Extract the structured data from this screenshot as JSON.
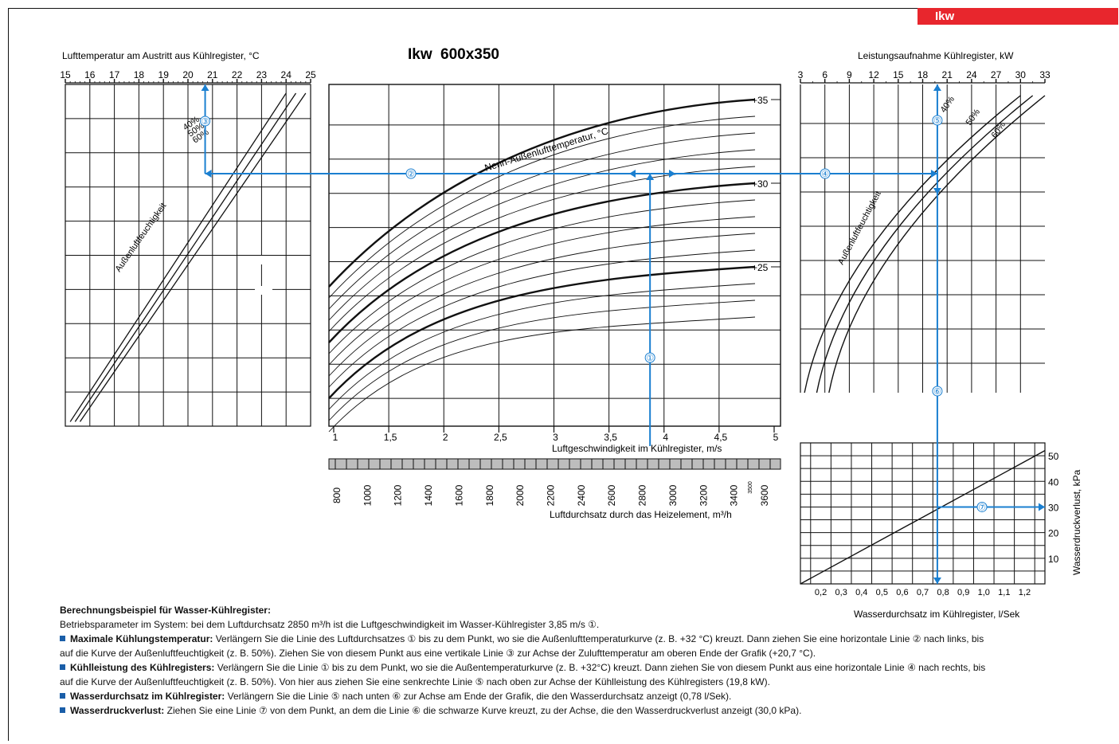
{
  "header": {
    "badge": "Ikw",
    "title_prefix": "Ikw",
    "title_model": "600x350"
  },
  "chart_data": [
    {
      "type": "line",
      "name": "left",
      "title": "Lufttemperatur am Austritt aus Kühlregister, °C",
      "x_ticks": [
        "15",
        "16",
        "17",
        "18",
        "19",
        "20",
        "21",
        "22",
        "23",
        "24",
        "25"
      ],
      "xlim": [
        15,
        25
      ],
      "curve_label": "Außenluftfeuchtigkeit",
      "series": [
        {
          "name": "40%",
          "points": [
            [
              15.2,
              0.02
            ],
            [
              24.0,
              1.0
            ]
          ]
        },
        {
          "name": "50%",
          "points": [
            [
              15.4,
              0.02
            ],
            [
              24.4,
              1.0
            ]
          ]
        },
        {
          "name": "60%",
          "points": [
            [
              15.6,
              0.02
            ],
            [
              24.8,
              1.0
            ]
          ]
        }
      ],
      "example": {
        "marker": "③",
        "value": 20.7
      }
    },
    {
      "type": "line",
      "name": "center",
      "xlabel": "Luftgeschwindigkeit im Kühlregister, m/s",
      "x_ticks": [
        "1",
        "1,5",
        "2",
        "2,5",
        "3",
        "3,5",
        "4",
        "4,5",
        "5"
      ],
      "xlim": [
        1,
        5
      ],
      "x2label": "Luftdurchsatz durch das Heizelement, m³/h",
      "x2_ticks": [
        "800",
        "1000",
        "1200",
        "1400",
        "1600",
        "1800",
        "2000",
        "2200",
        "2400",
        "2600",
        "2800",
        "3000",
        "3200",
        "3400",
        "3600"
      ],
      "x2_extra": "3500",
      "curve_label": "Nenn-Außenlufttemperatur, °C",
      "series_labels": [
        "+35",
        "+30",
        "+25"
      ],
      "example": {
        "marker": "①",
        "velocity": 3.85,
        "airflow": 2850
      }
    },
    {
      "type": "line",
      "name": "right-top",
      "title": "Leistungsaufnahme Kühlregister, kW",
      "x_ticks": [
        "3",
        "6",
        "9",
        "12",
        "15",
        "18",
        "21",
        "24",
        "27",
        "30",
        "33"
      ],
      "xlim": [
        3,
        33
      ],
      "curve_label": "Außenluftfeuchtigkeit",
      "series": [
        {
          "name": "40%",
          "points": [
            [
              3.5,
              0.0
            ],
            [
              30.0,
              1.0
            ]
          ]
        },
        {
          "name": "50%",
          "points": [
            [
              5.0,
              0.0
            ],
            [
              31.5,
              1.0
            ]
          ]
        },
        {
          "name": "60%",
          "points": [
            [
              6.5,
              0.0
            ],
            [
              33.0,
              1.0
            ]
          ]
        }
      ],
      "example": {
        "marker": "⑤",
        "value": 19.8
      }
    },
    {
      "type": "line",
      "name": "right-bottom",
      "xlabel": "Wasserdurchsatz im Kühlregister, l/Sek",
      "ylabel": "Wasserdruckverlust, kPa",
      "x_ticks": [
        "0,2",
        "0,3",
        "0,4",
        "0,5",
        "0,6",
        "0,7",
        "0,8",
        "0,9",
        "1,0",
        "1,1",
        "1,2"
      ],
      "y_ticks": [
        "10",
        "20",
        "30",
        "40",
        "50"
      ],
      "xlim": [
        0.1,
        1.3
      ],
      "ylim": [
        0,
        55
      ],
      "series": [
        {
          "name": "",
          "points": [
            [
              0.1,
              0.0
            ],
            [
              1.3,
              52.0
            ]
          ]
        }
      ],
      "example": {
        "marker": "⑦",
        "flow": 0.78,
        "pressure": 30.0
      }
    }
  ],
  "markers": [
    "①",
    "②",
    "③",
    "④",
    "⑤",
    "⑥",
    "⑦"
  ],
  "colors": {
    "accent": "#1a7fd0",
    "badge": "#e8262d",
    "notes_square": "#1a5ea8"
  },
  "notes": {
    "heading": "Berechnungsbeispiel für Wasser-Kühlregister:",
    "line1": "Betriebsparameter im System: bei dem Luftdurchsatz 2850 m³/h ist die Luftgeschwindigkeit im Wasser-Kühlregister 3,85 m/s ①.",
    "p1_bold": "Maximale Kühlungstemperatur:",
    "p1_text": "Verlängern Sie die Linie des Luftdurchsatzes ① bis zu dem Punkt, wo sie die Außenlufttemperaturkurve (z. B. +32 °C) kreuzt. Dann ziehen Sie eine horizontale Linie ② nach links, bis",
    "p1_text2": "auf die Kurve der Außenluftfeuchtigkeit (z. B. 50%). Ziehen Sie von diesem Punkt aus eine vertikale Linie ③ zur Achse der Zulufttemperatur am oberen Ende der Grafik (+20,7 °C).",
    "p2_bold": "Kühlleistung des Kühlregisters:",
    "p2_text": "Verlängern Sie die Linie ① bis zu dem Punkt, wo sie die Außentemperaturkurve (z. B. +32°C) kreuzt. Dann  ziehen Sie von diesem Punkt aus eine horizontale Linie ④ nach rechts, bis",
    "p2_text2": "auf die Kurve der Außenluftfeuchtigkeit (z. B. 50%). Von hier aus ziehen Sie eine senkrechte Linie ⑤ nach oben zur Achse der Kühlleistung des Kühlregisters (19,8 kW).",
    "p3_bold": "Wasserdurchsatz im Kühlregister:",
    "p3_text": "Verlängern Sie die Linie ⑤ nach unten ⑥ zur Achse am Ende der Grafik, die den Wasserdurchsatz anzeigt (0,78 l/Sek).",
    "p4_bold": "Wasserdruckverlust:",
    "p4_text": "Ziehen Sie eine Linie ⑦ von dem Punkt, an dem die Linie ⑥ die schwarze Kurve kreuzt, zu der Achse, die den Wasserdruckverlust anzeigt (30,0 kPa)."
  }
}
